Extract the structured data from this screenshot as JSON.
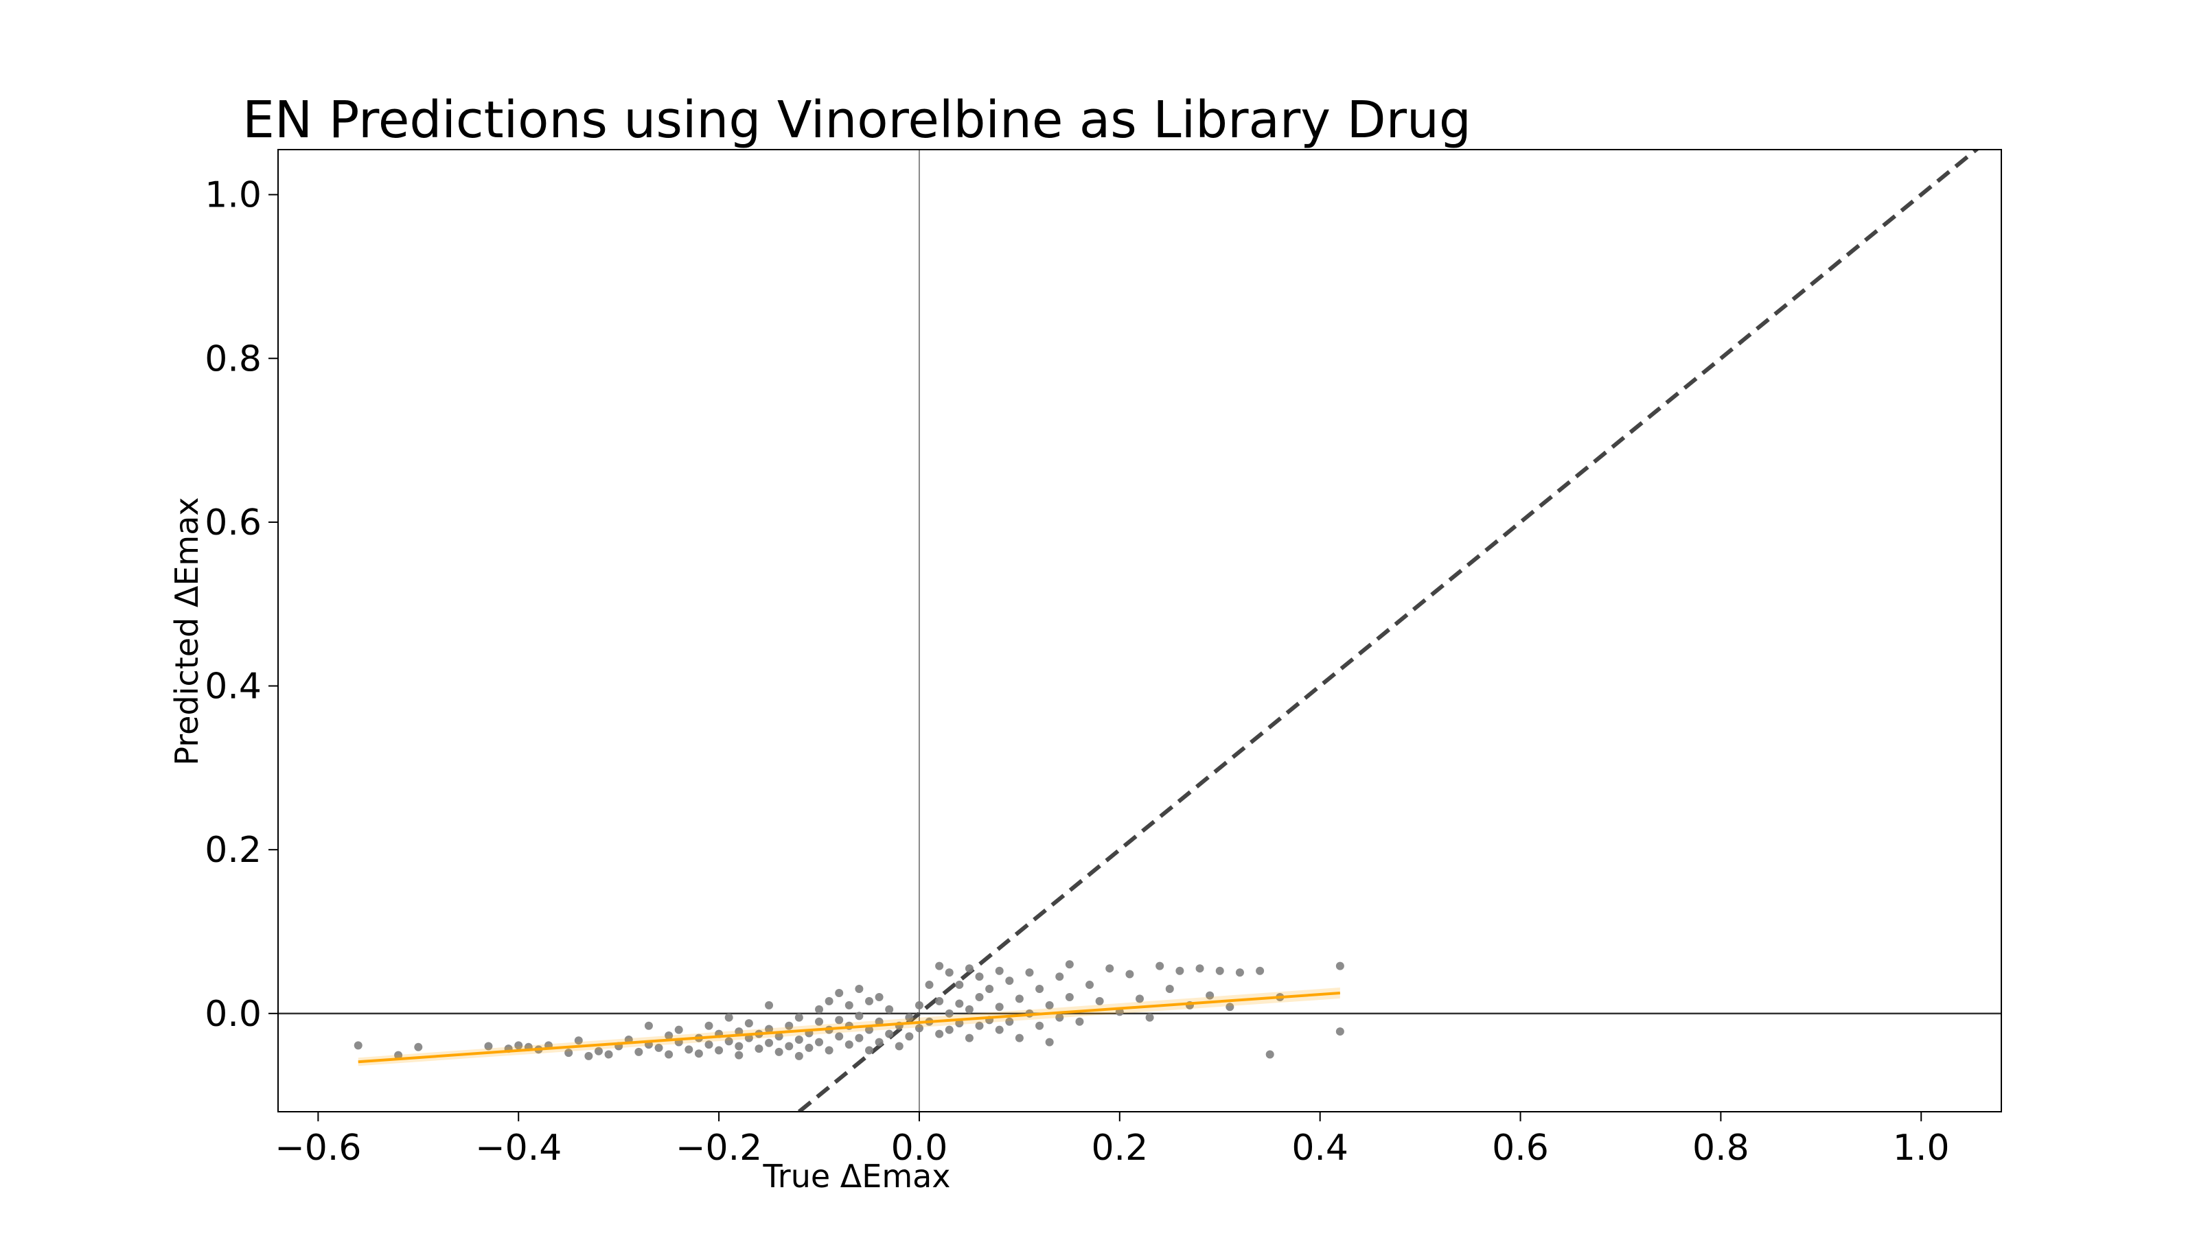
{
  "chart_data": {
    "type": "scatter",
    "title": "EN Predictions using Vinorelbine as Library Drug",
    "xlabel": "True ΔEmax",
    "ylabel": "Predicted ΔEmax",
    "xlim": [
      -0.64,
      1.08
    ],
    "ylim": [
      -0.12,
      1.055
    ],
    "x_ticks": [
      -0.6,
      -0.4,
      -0.2,
      0.0,
      0.2,
      0.4,
      0.6,
      0.8,
      1.0
    ],
    "x_tick_labels": [
      "−0.6",
      "−0.4",
      "−0.2",
      "0.0",
      "0.2",
      "0.4",
      "0.6",
      "0.8",
      "1.0"
    ],
    "y_ticks": [
      0.0,
      0.2,
      0.4,
      0.6,
      0.8,
      1.0
    ],
    "y_tick_labels": [
      "0.0",
      "0.2",
      "0.4",
      "0.6",
      "0.8",
      "1.0"
    ],
    "grid": false,
    "legend": "none",
    "reference_lines": [
      {
        "kind": "vertical",
        "x": 0.0,
        "color": "#888888"
      },
      {
        "kind": "horizontal",
        "y": 0.0,
        "color": "#333333"
      },
      {
        "kind": "identity",
        "from": [
          -0.12,
          -0.12
        ],
        "to": [
          1.08,
          1.08
        ],
        "style": "dashed",
        "color": "#444444"
      }
    ],
    "regression_line": {
      "from": [
        -0.56,
        -0.059
      ],
      "to": [
        0.42,
        0.025
      ],
      "color": "#FFA500"
    },
    "point_color": "#808080",
    "points": [
      [
        -0.56,
        -0.039
      ],
      [
        -0.52,
        -0.051
      ],
      [
        -0.5,
        -0.041
      ],
      [
        -0.43,
        -0.04
      ],
      [
        -0.41,
        -0.043
      ],
      [
        -0.4,
        -0.039
      ],
      [
        -0.39,
        -0.041
      ],
      [
        -0.38,
        -0.044
      ],
      [
        -0.37,
        -0.039
      ],
      [
        -0.35,
        -0.048
      ],
      [
        -0.34,
        -0.033
      ],
      [
        -0.33,
        -0.052
      ],
      [
        -0.32,
        -0.046
      ],
      [
        -0.31,
        -0.05
      ],
      [
        -0.3,
        -0.04
      ],
      [
        -0.29,
        -0.032
      ],
      [
        -0.28,
        -0.047
      ],
      [
        -0.27,
        -0.038
      ],
      [
        -0.27,
        -0.015
      ],
      [
        -0.26,
        -0.042
      ],
      [
        -0.25,
        -0.027
      ],
      [
        -0.25,
        -0.05
      ],
      [
        -0.24,
        -0.035
      ],
      [
        -0.24,
        -0.02
      ],
      [
        -0.23,
        -0.044
      ],
      [
        -0.22,
        -0.03
      ],
      [
        -0.22,
        -0.049
      ],
      [
        -0.21,
        -0.038
      ],
      [
        -0.21,
        -0.015
      ],
      [
        -0.2,
        -0.025
      ],
      [
        -0.2,
        -0.045
      ],
      [
        -0.19,
        -0.034
      ],
      [
        -0.19,
        -0.005
      ],
      [
        -0.18,
        -0.04
      ],
      [
        -0.18,
        -0.022
      ],
      [
        -0.18,
        -0.051
      ],
      [
        -0.17,
        -0.03
      ],
      [
        -0.17,
        -0.012
      ],
      [
        -0.16,
        -0.043
      ],
      [
        -0.16,
        -0.025
      ],
      [
        -0.15,
        -0.036
      ],
      [
        -0.15,
        0.01
      ],
      [
        -0.15,
        -0.019
      ],
      [
        -0.14,
        -0.047
      ],
      [
        -0.14,
        -0.028
      ],
      [
        -0.13,
        -0.04
      ],
      [
        -0.13,
        -0.015
      ],
      [
        -0.12,
        -0.032
      ],
      [
        -0.12,
        -0.052
      ],
      [
        -0.12,
        -0.005
      ],
      [
        -0.11,
        -0.024
      ],
      [
        -0.11,
        -0.042
      ],
      [
        -0.1,
        -0.01
      ],
      [
        -0.1,
        -0.035
      ],
      [
        -0.1,
        0.005
      ],
      [
        -0.09,
        -0.02
      ],
      [
        -0.09,
        -0.045
      ],
      [
        -0.09,
        0.015
      ],
      [
        -0.08,
        -0.028
      ],
      [
        -0.08,
        -0.008
      ],
      [
        -0.08,
        0.025
      ],
      [
        -0.07,
        -0.038
      ],
      [
        -0.07,
        -0.015
      ],
      [
        -0.07,
        0.01
      ],
      [
        -0.06,
        -0.03
      ],
      [
        -0.06,
        -0.003
      ],
      [
        -0.06,
        0.03
      ],
      [
        -0.05,
        -0.045
      ],
      [
        -0.05,
        -0.02
      ],
      [
        -0.05,
        0.015
      ],
      [
        -0.04,
        -0.01
      ],
      [
        -0.04,
        -0.035
      ],
      [
        -0.04,
        0.02
      ],
      [
        -0.03,
        -0.025
      ],
      [
        -0.03,
        0.005
      ],
      [
        -0.02,
        -0.015
      ],
      [
        -0.02,
        -0.04
      ],
      [
        -0.01,
        -0.005
      ],
      [
        -0.01,
        -0.028
      ],
      [
        0.0,
        0.01
      ],
      [
        0.0,
        -0.018
      ],
      [
        0.01,
        0.035
      ],
      [
        0.01,
        -0.01
      ],
      [
        0.02,
        0.058
      ],
      [
        0.02,
        -0.025
      ],
      [
        0.02,
        0.015
      ],
      [
        0.03,
        0.05
      ],
      [
        0.03,
        -0.02
      ],
      [
        0.03,
        0.0
      ],
      [
        0.04,
        0.035
      ],
      [
        0.04,
        -0.012
      ],
      [
        0.04,
        0.012
      ],
      [
        0.05,
        0.055
      ],
      [
        0.05,
        -0.03
      ],
      [
        0.05,
        0.005
      ],
      [
        0.06,
        0.045
      ],
      [
        0.06,
        -0.015
      ],
      [
        0.06,
        0.02
      ],
      [
        0.07,
        0.03
      ],
      [
        0.07,
        -0.008
      ],
      [
        0.08,
        0.052
      ],
      [
        0.08,
        -0.02
      ],
      [
        0.08,
        0.008
      ],
      [
        0.09,
        0.04
      ],
      [
        0.09,
        -0.01
      ],
      [
        0.1,
        0.018
      ],
      [
        0.1,
        -0.03
      ],
      [
        0.11,
        0.05
      ],
      [
        0.11,
        0.0
      ],
      [
        0.12,
        0.03
      ],
      [
        0.12,
        -0.015
      ],
      [
        0.13,
        0.01
      ],
      [
        0.13,
        -0.035
      ],
      [
        0.14,
        0.045
      ],
      [
        0.14,
        -0.005
      ],
      [
        0.15,
        0.06
      ],
      [
        0.15,
        0.02
      ],
      [
        0.16,
        -0.01
      ],
      [
        0.17,
        0.035
      ],
      [
        0.18,
        0.015
      ],
      [
        0.19,
        0.055
      ],
      [
        0.2,
        0.002
      ],
      [
        0.21,
        0.048
      ],
      [
        0.22,
        0.018
      ],
      [
        0.23,
        -0.005
      ],
      [
        0.24,
        0.058
      ],
      [
        0.25,
        0.03
      ],
      [
        0.26,
        0.052
      ],
      [
        0.27,
        0.01
      ],
      [
        0.28,
        0.055
      ],
      [
        0.29,
        0.022
      ],
      [
        0.3,
        0.052
      ],
      [
        0.31,
        0.008
      ],
      [
        0.32,
        0.05
      ],
      [
        0.34,
        0.052
      ],
      [
        0.35,
        -0.05
      ],
      [
        0.36,
        0.02
      ],
      [
        0.42,
        0.058
      ],
      [
        0.42,
        -0.022
      ]
    ]
  }
}
